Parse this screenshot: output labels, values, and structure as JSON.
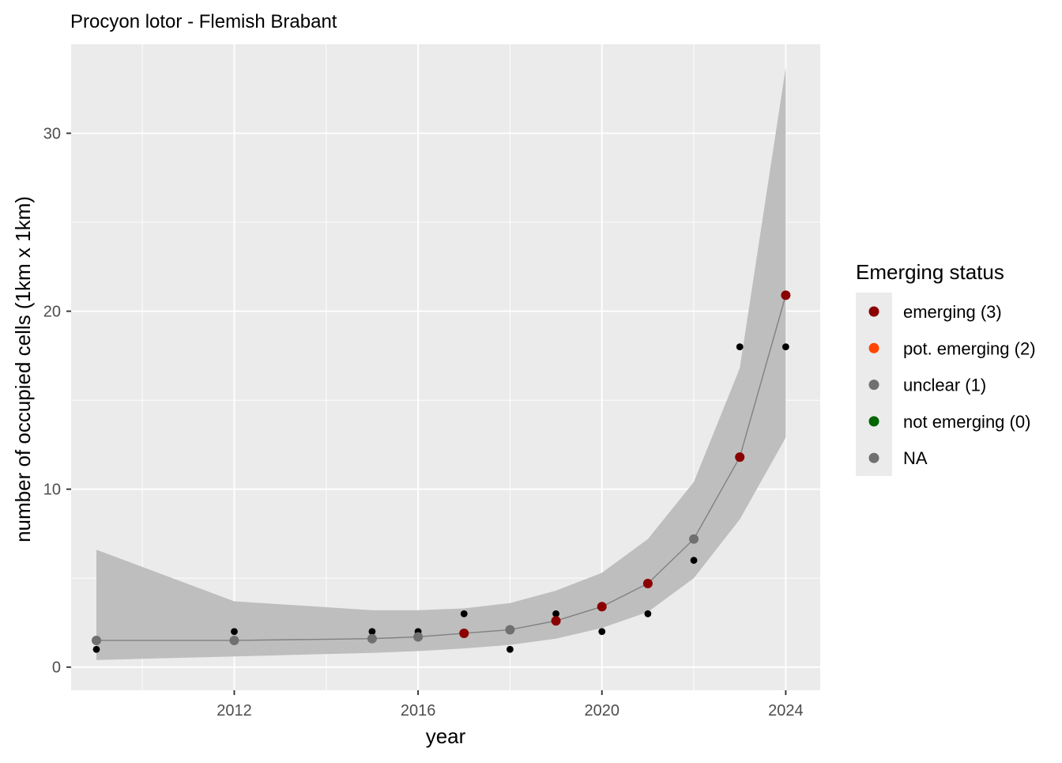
{
  "chart_data": {
    "type": "line",
    "title": "Procyon lotor - Flemish Brabant",
    "xlabel": "year",
    "ylabel": "number of occupied cells (1km x 1km)",
    "xlim": [
      2008.45,
      2024.75
    ],
    "ylim": [
      -1.3,
      35.0
    ],
    "x_ticks": [
      2012,
      2016,
      2020,
      2024
    ],
    "y_ticks": [
      0,
      10,
      20,
      30
    ],
    "grid": true,
    "legend": {
      "title": "Emerging status",
      "position": "right",
      "entries": [
        {
          "label": "emerging (3)",
          "color": "#8B0000"
        },
        {
          "label": "pot. emerging (2)",
          "color": "#FF4500"
        },
        {
          "label": "unclear (1)",
          "color": "#707070"
        },
        {
          "label": "not emerging (0)",
          "color": "#006400"
        },
        {
          "label": "NA",
          "color": "#707070"
        }
      ]
    },
    "observed": {
      "color": "#000000",
      "points": [
        {
          "x": 2009,
          "y": 1
        },
        {
          "x": 2012,
          "y": 2
        },
        {
          "x": 2015,
          "y": 2
        },
        {
          "x": 2016,
          "y": 2
        },
        {
          "x": 2017,
          "y": 3
        },
        {
          "x": 2018,
          "y": 1
        },
        {
          "x": 2019,
          "y": 3
        },
        {
          "x": 2020,
          "y": 2
        },
        {
          "x": 2021,
          "y": 3
        },
        {
          "x": 2022,
          "y": 6
        },
        {
          "x": 2023,
          "y": 18
        },
        {
          "x": 2024,
          "y": 18
        }
      ]
    },
    "fitted": {
      "line_color": "#808080",
      "ribbon_color": "#BEBEBE",
      "points": [
        {
          "x": 2009,
          "y": 1.5,
          "lower": 0.4,
          "upper": 6.6,
          "status": "unclear (1)"
        },
        {
          "x": 2012,
          "y": 1.5,
          "lower": 0.6,
          "upper": 3.7,
          "status": "unclear (1)"
        },
        {
          "x": 2015,
          "y": 1.6,
          "lower": 0.8,
          "upper": 3.2,
          "status": "unclear (1)"
        },
        {
          "x": 2016,
          "y": 1.7,
          "lower": 0.9,
          "upper": 3.2,
          "status": "unclear (1)"
        },
        {
          "x": 2017,
          "y": 1.9,
          "lower": 1.05,
          "upper": 3.3,
          "status": "emerging (3)"
        },
        {
          "x": 2018,
          "y": 2.1,
          "lower": 1.25,
          "upper": 3.6,
          "status": "unclear (1)"
        },
        {
          "x": 2019,
          "y": 2.6,
          "lower": 1.6,
          "upper": 4.3,
          "status": "emerging (3)"
        },
        {
          "x": 2020,
          "y": 3.4,
          "lower": 2.2,
          "upper": 5.3,
          "status": "emerging (3)"
        },
        {
          "x": 2021,
          "y": 4.7,
          "lower": 3.1,
          "upper": 7.2,
          "status": "emerging (3)"
        },
        {
          "x": 2022,
          "y": 7.2,
          "lower": 5.0,
          "upper": 10.4,
          "status": "unclear (1)"
        },
        {
          "x": 2023,
          "y": 11.8,
          "lower": 8.3,
          "upper": 16.8,
          "status": "emerging (3)"
        },
        {
          "x": 2024,
          "y": 20.9,
          "lower": 12.9,
          "upper": 33.7,
          "status": "emerging (3)"
        }
      ]
    }
  }
}
